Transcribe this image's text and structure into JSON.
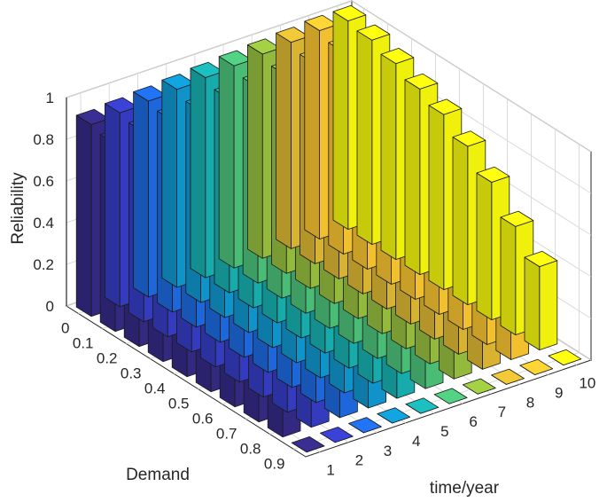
{
  "chart_data": {
    "type": "bar3d",
    "zlabel": "Reliability",
    "xlabel": "time/year",
    "ylabel": "Demand",
    "time_ticks": [
      "1",
      "2",
      "3",
      "4",
      "5",
      "6",
      "7",
      "8",
      "9",
      "10"
    ],
    "demand_ticks": [
      "0",
      "0.1",
      "0.2",
      "0.3",
      "0.4",
      "0.5",
      "0.6",
      "0.7",
      "0.8",
      "0.9"
    ],
    "reliability_ticks": [
      "0",
      "0.2",
      "0.4",
      "0.6",
      "0.8",
      "1"
    ],
    "zlim": [
      0,
      1
    ],
    "grid": true,
    "colormap": "parula (colored by time/year)",
    "series": [
      {
        "time": 1,
        "values": [
          0.92,
          0.9,
          0.88,
          0.86,
          0.84,
          0.8,
          0.73,
          0.64,
          0.55,
          0.0
        ]
      },
      {
        "time": 2,
        "values": [
          0.93,
          0.91,
          0.89,
          0.87,
          0.84,
          0.8,
          0.73,
          0.64,
          0.55,
          0.0
        ]
      },
      {
        "time": 3,
        "values": [
          0.94,
          0.92,
          0.89,
          0.87,
          0.84,
          0.79,
          0.72,
          0.63,
          0.53,
          0.0
        ]
      },
      {
        "time": 4,
        "values": [
          0.95,
          0.92,
          0.9,
          0.87,
          0.84,
          0.79,
          0.72,
          0.62,
          0.52,
          0.0
        ]
      },
      {
        "time": 5,
        "values": [
          0.96,
          0.93,
          0.9,
          0.87,
          0.84,
          0.79,
          0.71,
          0.61,
          0.5,
          0.0
        ]
      },
      {
        "time": 6,
        "values": [
          0.97,
          0.94,
          0.91,
          0.88,
          0.84,
          0.78,
          0.7,
          0.6,
          0.48,
          0.0
        ]
      },
      {
        "time": 7,
        "values": [
          0.98,
          0.95,
          0.92,
          0.88,
          0.84,
          0.78,
          0.69,
          0.58,
          0.46,
          0.0
        ]
      },
      {
        "time": 8,
        "values": [
          0.99,
          0.96,
          0.92,
          0.88,
          0.84,
          0.77,
          0.68,
          0.56,
          0.44,
          0.0
        ]
      },
      {
        "time": 9,
        "values": [
          1.0,
          0.97,
          0.93,
          0.89,
          0.84,
          0.77,
          0.67,
          0.54,
          0.42,
          0.0
        ]
      },
      {
        "time": 10,
        "values": [
          1.0,
          0.98,
          0.94,
          0.89,
          0.84,
          0.76,
          0.66,
          0.52,
          0.4,
          0.0
        ]
      }
    ]
  }
}
